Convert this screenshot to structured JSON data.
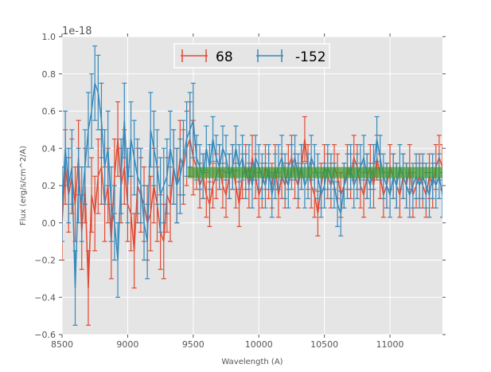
{
  "chart_data": {
    "type": "line",
    "title": "",
    "xlabel": "Wavelength (A)",
    "ylabel": "Flux (erg/s/cm^2/A)",
    "y_offset_label": "1e-18",
    "xlim": [
      8500,
      11400
    ],
    "ylim": [
      -0.6,
      1.0
    ],
    "xticks": [
      "8500",
      "9000",
      "9500",
      "10000",
      "10500",
      "11000"
    ],
    "xtick_values": [
      8500,
      9000,
      9500,
      10000,
      10500,
      11000
    ],
    "yticks": [
      "−0.6",
      "−0.4",
      "−0.2",
      "0.0",
      "0.2",
      "0.4",
      "0.6",
      "0.8",
      "1.0"
    ],
    "ytick_values": [
      -0.6,
      -0.4,
      -0.2,
      0.0,
      0.2,
      0.4,
      0.6,
      0.8,
      1.0
    ],
    "grid": true,
    "legend_placement": "top-center",
    "x_start": 8500,
    "x_step": 25,
    "series": [
      {
        "name": "68",
        "color": "#E24A33",
        "yerr_segments": [
          {
            "until": 9500,
            "err": 0.2
          },
          {
            "until": 11400,
            "err": 0.12
          }
        ],
        "values": [
          0.0,
          0.3,
          0.15,
          0.25,
          0.1,
          0.35,
          -0.05,
          0.2,
          -0.35,
          0.15,
          0.05,
          0.25,
          0.3,
          0.1,
          0.2,
          -0.1,
          0.25,
          0.45,
          0.2,
          0.3,
          0.1,
          0.05,
          -0.15,
          0.2,
          0.15,
          0.1,
          0.0,
          0.05,
          0.2,
          0.1,
          -0.05,
          -0.1,
          0.15,
          0.1,
          0.3,
          0.2,
          0.35,
          0.3,
          0.4,
          0.45,
          0.35,
          0.3,
          0.2,
          0.25,
          0.15,
          0.1,
          0.2,
          0.25,
          0.3,
          0.2,
          0.15,
          0.25,
          0.3,
          0.2,
          0.1,
          0.25,
          0.3,
          0.2,
          0.35,
          0.25,
          0.15,
          0.2,
          0.3,
          0.25,
          0.2,
          0.3,
          0.15,
          0.25,
          0.2,
          0.3,
          0.35,
          0.25,
          0.2,
          0.3,
          0.45,
          0.3,
          0.2,
          0.15,
          0.05,
          0.2,
          0.3,
          0.25,
          0.2,
          0.3,
          0.25,
          0.15,
          0.2,
          0.3,
          0.25,
          0.35,
          0.3,
          0.2,
          0.15,
          0.25,
          0.3,
          0.2,
          0.35,
          0.25,
          0.15,
          0.2,
          0.3,
          0.25,
          0.2,
          0.15,
          0.25,
          0.2,
          0.3,
          0.15,
          0.2,
          0.25,
          0.2,
          0.15,
          0.25,
          0.2,
          0.3,
          0.35,
          0.3
        ]
      },
      {
        "name": "-152",
        "color": "#348ABD",
        "yerr_segments": [
          {
            "until": 9500,
            "err": 0.2
          },
          {
            "until": 11400,
            "err": 0.12
          }
        ],
        "values": [
          0.1,
          0.4,
          0.2,
          0.3,
          -0.35,
          0.2,
          0.1,
          0.3,
          0.5,
          0.6,
          0.75,
          0.7,
          0.55,
          0.3,
          0.4,
          0.1,
          0.0,
          -0.2,
          0.25,
          0.55,
          0.2,
          0.45,
          0.35,
          0.25,
          0.2,
          0.0,
          -0.1,
          0.5,
          0.4,
          0.3,
          0.15,
          0.2,
          0.25,
          0.4,
          0.3,
          0.2,
          0.25,
          0.35,
          0.45,
          0.5,
          0.55,
          0.35,
          0.3,
          0.25,
          0.4,
          0.3,
          0.45,
          0.35,
          0.3,
          0.4,
          0.35,
          0.25,
          0.3,
          0.4,
          0.3,
          0.35,
          0.25,
          0.3,
          0.2,
          0.35,
          0.3,
          0.25,
          0.2,
          0.3,
          0.15,
          0.25,
          0.3,
          0.35,
          0.25,
          0.2,
          0.3,
          0.35,
          0.25,
          0.3,
          0.2,
          0.25,
          0.35,
          0.3,
          0.25,
          0.15,
          0.2,
          0.3,
          0.25,
          0.2,
          0.1,
          0.05,
          0.2,
          0.25,
          0.3,
          0.2,
          0.25,
          0.3,
          0.35,
          0.25,
          0.2,
          0.3,
          0.45,
          0.35,
          0.25,
          0.2,
          0.15,
          0.25,
          0.2,
          0.3,
          0.25,
          0.2,
          0.15,
          0.2,
          0.25,
          0.2,
          0.25,
          0.2,
          0.15,
          0.25,
          0.2,
          0.25,
          0.15
        ]
      }
    ],
    "band": {
      "x": [
        9460,
        11400
      ],
      "y": [
        0.24,
        0.3
      ],
      "color": "#3a9a2a"
    }
  }
}
